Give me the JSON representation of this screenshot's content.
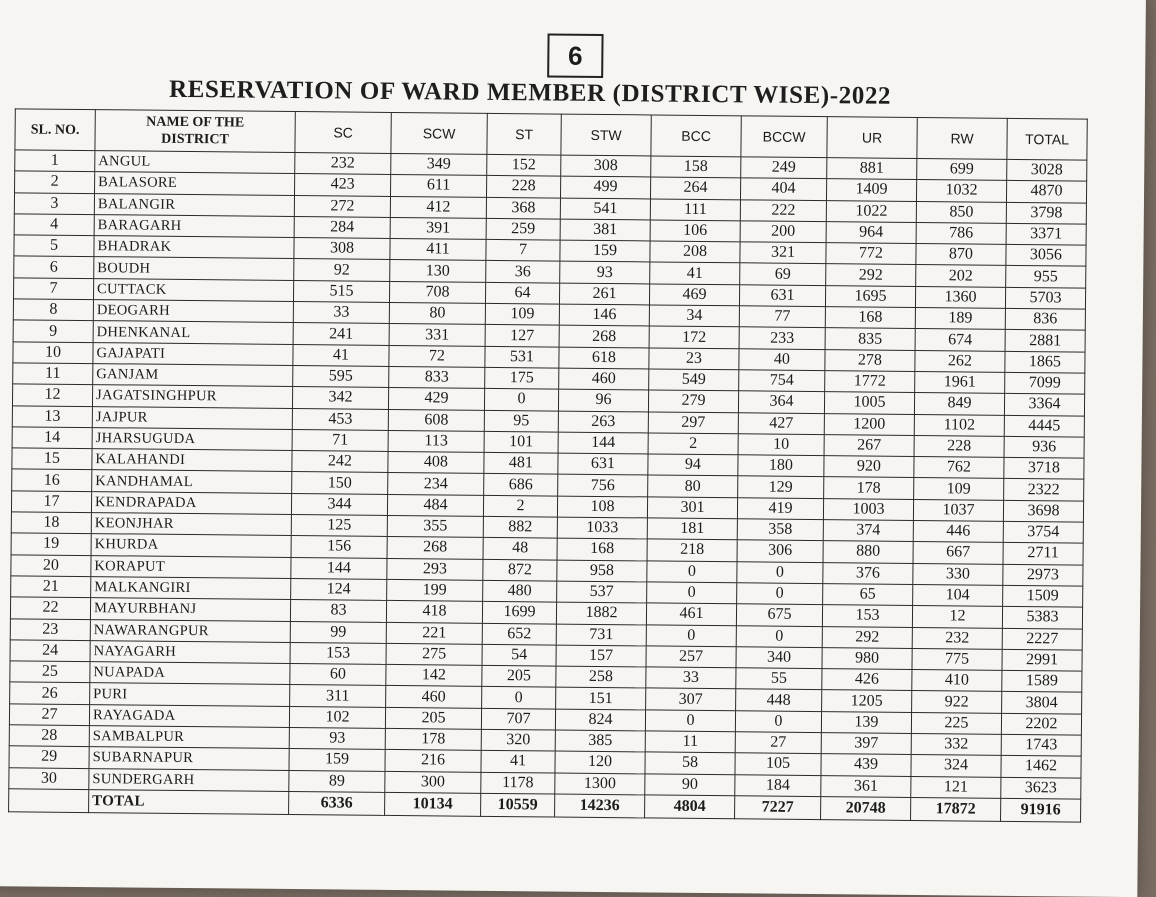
{
  "page_number": "6",
  "title": "RESERVATION OF WARD MEMBER (DISTRICT WISE)-2022",
  "columns": [
    "SL. NO.",
    "NAME OF THE DISTRICT",
    "SC",
    "SCW",
    "ST",
    "STW",
    "BCC",
    "BCCW",
    "UR",
    "RW",
    "TOTAL"
  ],
  "rows": [
    [
      "1",
      "ANGUL",
      "232",
      "349",
      "152",
      "308",
      "158",
      "249",
      "881",
      "699",
      "3028"
    ],
    [
      "2",
      "BALASORE",
      "423",
      "611",
      "228",
      "499",
      "264",
      "404",
      "1409",
      "1032",
      "4870"
    ],
    [
      "3",
      "BALANGIR",
      "272",
      "412",
      "368",
      "541",
      "111",
      "222",
      "1022",
      "850",
      "3798"
    ],
    [
      "4",
      "BARAGARH",
      "284",
      "391",
      "259",
      "381",
      "106",
      "200",
      "964",
      "786",
      "3371"
    ],
    [
      "5",
      "BHADRAK",
      "308",
      "411",
      "7",
      "159",
      "208",
      "321",
      "772",
      "870",
      "3056"
    ],
    [
      "6",
      "BOUDH",
      "92",
      "130",
      "36",
      "93",
      "41",
      "69",
      "292",
      "202",
      "955"
    ],
    [
      "7",
      "CUTTACK",
      "515",
      "708",
      "64",
      "261",
      "469",
      "631",
      "1695",
      "1360",
      "5703"
    ],
    [
      "8",
      "DEOGARH",
      "33",
      "80",
      "109",
      "146",
      "34",
      "77",
      "168",
      "189",
      "836"
    ],
    [
      "9",
      "DHENKANAL",
      "241",
      "331",
      "127",
      "268",
      "172",
      "233",
      "835",
      "674",
      "2881"
    ],
    [
      "10",
      "GAJAPATI",
      "41",
      "72",
      "531",
      "618",
      "23",
      "40",
      "278",
      "262",
      "1865"
    ],
    [
      "11",
      "GANJAM",
      "595",
      "833",
      "175",
      "460",
      "549",
      "754",
      "1772",
      "1961",
      "7099"
    ],
    [
      "12",
      "JAGATSINGHPUR",
      "342",
      "429",
      "0",
      "96",
      "279",
      "364",
      "1005",
      "849",
      "3364"
    ],
    [
      "13",
      "JAJPUR",
      "453",
      "608",
      "95",
      "263",
      "297",
      "427",
      "1200",
      "1102",
      "4445"
    ],
    [
      "14",
      "JHARSUGUDA",
      "71",
      "113",
      "101",
      "144",
      "2",
      "10",
      "267",
      "228",
      "936"
    ],
    [
      "15",
      "KALAHANDI",
      "242",
      "408",
      "481",
      "631",
      "94",
      "180",
      "920",
      "762",
      "3718"
    ],
    [
      "16",
      "KANDHAMAL",
      "150",
      "234",
      "686",
      "756",
      "80",
      "129",
      "178",
      "109",
      "2322"
    ],
    [
      "17",
      "KENDRAPADA",
      "344",
      "484",
      "2",
      "108",
      "301",
      "419",
      "1003",
      "1037",
      "3698"
    ],
    [
      "18",
      "KEONJHAR",
      "125",
      "355",
      "882",
      "1033",
      "181",
      "358",
      "374",
      "446",
      "3754"
    ],
    [
      "19",
      "KHURDA",
      "156",
      "268",
      "48",
      "168",
      "218",
      "306",
      "880",
      "667",
      "2711"
    ],
    [
      "20",
      "KORAPUT",
      "144",
      "293",
      "872",
      "958",
      "0",
      "0",
      "376",
      "330",
      "2973"
    ],
    [
      "21",
      "MALKANGIRI",
      "124",
      "199",
      "480",
      "537",
      "0",
      "0",
      "65",
      "104",
      "1509"
    ],
    [
      "22",
      "MAYURBHANJ",
      "83",
      "418",
      "1699",
      "1882",
      "461",
      "675",
      "153",
      "12",
      "5383"
    ],
    [
      "23",
      "NAWARANGPUR",
      "99",
      "221",
      "652",
      "731",
      "0",
      "0",
      "292",
      "232",
      "2227"
    ],
    [
      "24",
      "NAYAGARH",
      "153",
      "275",
      "54",
      "157",
      "257",
      "340",
      "980",
      "775",
      "2991"
    ],
    [
      "25",
      "NUAPADA",
      "60",
      "142",
      "205",
      "258",
      "33",
      "55",
      "426",
      "410",
      "1589"
    ],
    [
      "26",
      "PURI",
      "311",
      "460",
      "0",
      "151",
      "307",
      "448",
      "1205",
      "922",
      "3804"
    ],
    [
      "27",
      "RAYAGADA",
      "102",
      "205",
      "707",
      "824",
      "0",
      "0",
      "139",
      "225",
      "2202"
    ],
    [
      "28",
      "SAMBALPUR",
      "93",
      "178",
      "320",
      "385",
      "11",
      "27",
      "397",
      "332",
      "1743"
    ],
    [
      "29",
      "SUBARNAPUR",
      "159",
      "216",
      "41",
      "120",
      "58",
      "105",
      "439",
      "324",
      "1462"
    ],
    [
      "30",
      "SUNDERGARH",
      "89",
      "300",
      "1178",
      "1300",
      "90",
      "184",
      "361",
      "121",
      "3623"
    ]
  ],
  "total_row": [
    "",
    "TOTAL",
    "6336",
    "10134",
    "10559",
    "14236",
    "4804",
    "7227",
    "20748",
    "17872",
    "91916"
  ]
}
